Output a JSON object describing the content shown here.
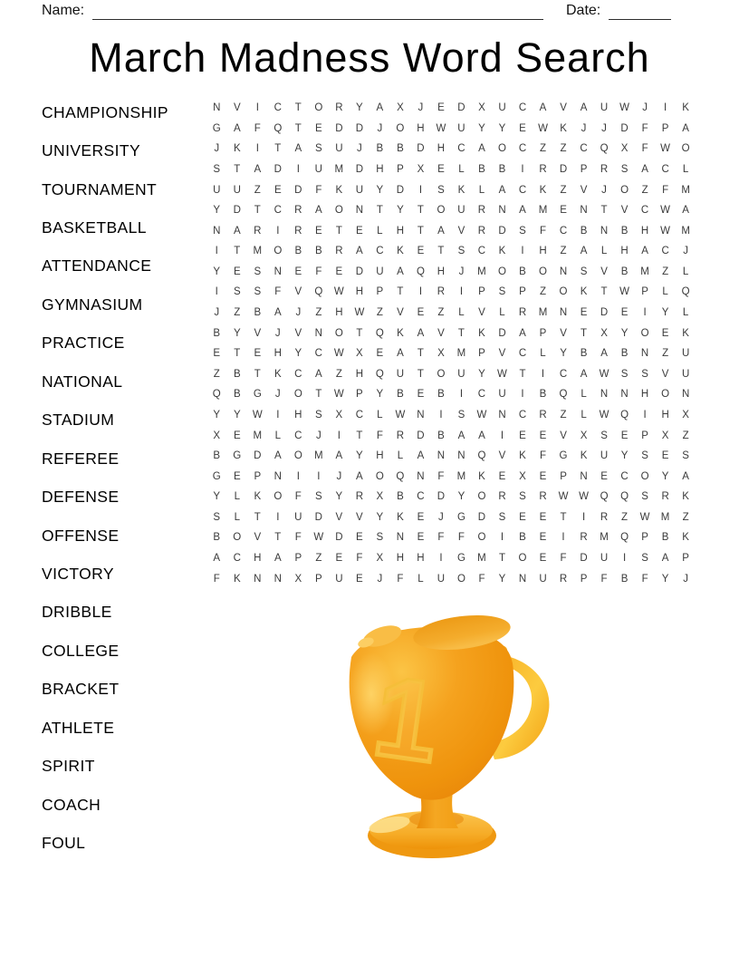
{
  "header": {
    "name_label": "Name:",
    "date_label": "Date:"
  },
  "title": "March Madness Word Search",
  "word_list": [
    "CHAMPIONSHIP",
    "UNIVERSITY",
    "TOURNAMENT",
    "BASKETBALL",
    "ATTENDANCE",
    "GYMNASIUM",
    "PRACTICE",
    "NATIONAL",
    "STADIUM",
    "REFEREE",
    "DEFENSE",
    "OFFENSE",
    "VICTORY",
    "DRIBBLE",
    "COLLEGE",
    "BRACKET",
    "ATHLETE",
    "SPIRIT",
    "COACH",
    "FOUL"
  ],
  "grid": {
    "rows": 24,
    "cols": 24,
    "letters": [
      "NVICTORYAXJEDXUCAVAUWJIK",
      "GAFQTEDDJOHWUYYEWKJJDFPA",
      "JKITASUJBBDHCAOCZZCQXFWO",
      "STADIUMDHPXELBBIRDPRSACL",
      "UUZEDFKUYDISKLACKZVJOZFM",
      "YDTCRAONTYTOURNAMENTVCWA",
      "NARIRETELHTAVRDSFCBNBHWM",
      "ITMOBBRACKETSCKIHZALHACJ",
      "YESNEFEDUAQHJMOBONSVBMZL",
      "ISSFVQWHPTIRIPSPZOKTWPLQ",
      "JZBAJZHWZVEZLVLRMNEDEIYL",
      "BYVJVNOTQKAVTKDAPVTXYOEK",
      "ETEHYCWXEATXMPVCLYBABNZU",
      "ZBTKCAZHQUTOUYWTICAWSSVU",
      "QBGJOTWPYBEBICUIBQLNNHON",
      "YYWIHSXCLWNISWNCRZLWQIHX",
      "XEMLCJITFRDBAAIEEVXSEPXZ",
      "BGDAOMAYHLANNQVKFGKUYSES",
      "GEPNIIJAOQNFMKEXEPNECOYA",
      "YLKOFSYRXBCDYORSRWWQQSRK",
      "SLTIUDVVYKEJGDSEETIRZWMZ",
      "BOVTFWDESNEFFOIBEIRMQPBK",
      "ACHAPZEFXHHIGMTOEFDUISAP",
      "FKNNXPUEJFLUOFYNURPFBFYJ"
    ]
  },
  "trophy": {
    "number": "1",
    "colors": {
      "body": "#F29C12",
      "body_dark": "#E8860A",
      "body_light": "#FBC847",
      "handle": "#FBC93E",
      "base_light": "#F8BA3F",
      "numeral_outline": "#F5BE39"
    }
  },
  "colors": {
    "text": "#000000",
    "grid_letters": "#3A3A3A",
    "rule_line": "#2E2E2E"
  }
}
